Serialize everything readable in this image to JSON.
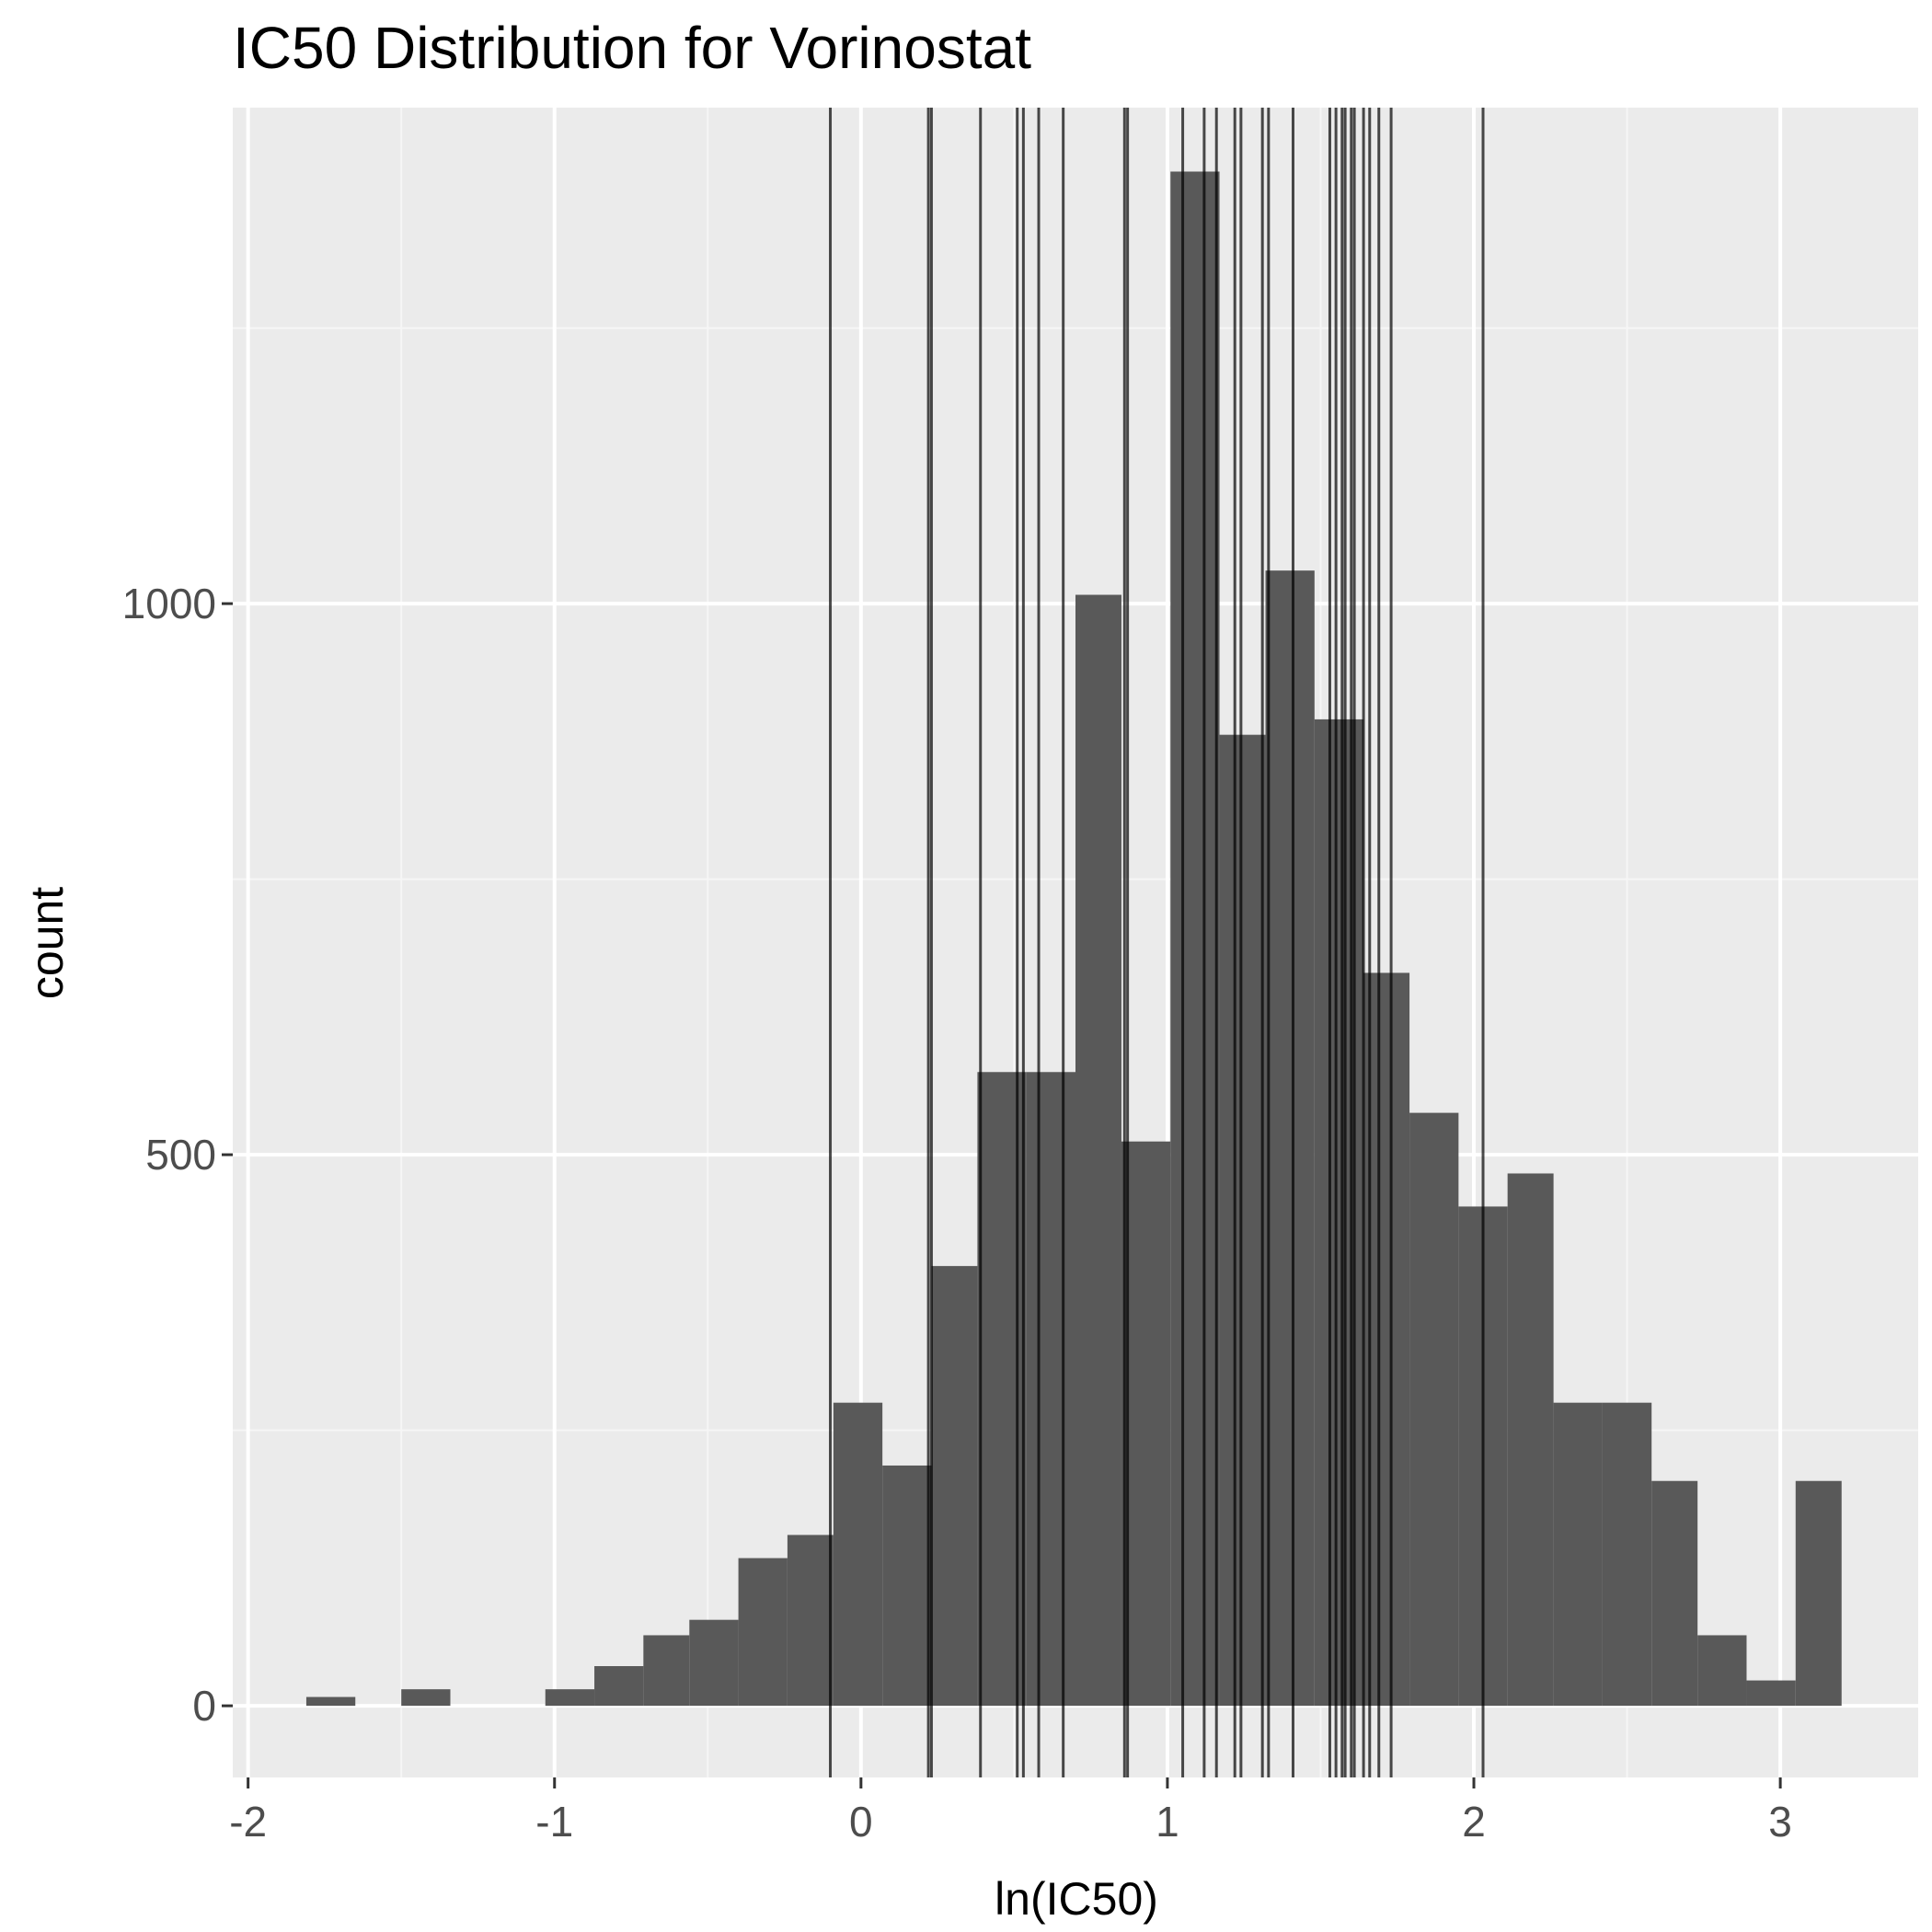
{
  "chart_data": {
    "type": "bar",
    "title": "IC50 Distribution for Vorinostat",
    "xlabel": "ln(IC50)",
    "ylabel": "count",
    "xlim": [
      -2.05,
      3.45
    ],
    "ylim": [
      -65,
      1450
    ],
    "x_ticks": [
      {
        "value": -2,
        "label": "-2"
      },
      {
        "value": -1,
        "label": "-1"
      },
      {
        "value": 0,
        "label": "0"
      },
      {
        "value": 1,
        "label": "1"
      },
      {
        "value": 2,
        "label": "2"
      },
      {
        "value": 3,
        "label": "3"
      }
    ],
    "y_ticks": [
      {
        "value": 0,
        "label": "0"
      },
      {
        "value": 500,
        "label": "500"
      },
      {
        "value": 1000,
        "label": "1000"
      }
    ],
    "bins": [
      {
        "x0": -1.81,
        "x1": -1.65,
        "count": 8
      },
      {
        "x0": -1.65,
        "x1": -1.5,
        "count": 0
      },
      {
        "x0": -1.5,
        "x1": -1.34,
        "count": 15
      },
      {
        "x0": -1.34,
        "x1": -1.18,
        "count": 0
      },
      {
        "x0": -1.18,
        "x1": -1.03,
        "count": 0
      },
      {
        "x0": -1.03,
        "x1": -0.87,
        "count": 15
      },
      {
        "x0": -0.87,
        "x1": -0.71,
        "count": 36
      },
      {
        "x0": -0.71,
        "x1": -0.56,
        "count": 64
      },
      {
        "x0": -0.56,
        "x1": -0.4,
        "count": 78
      },
      {
        "x0": -0.4,
        "x1": -0.24,
        "count": 134
      },
      {
        "x0": -0.24,
        "x1": -0.09,
        "count": 155
      },
      {
        "x0": -0.09,
        "x1": 0.07,
        "count": 275
      },
      {
        "x0": 0.07,
        "x1": 0.23,
        "count": 218
      },
      {
        "x0": 0.23,
        "x1": 0.38,
        "count": 399
      },
      {
        "x0": 0.38,
        "x1": 0.54,
        "count": 575
      },
      {
        "x0": 0.54,
        "x1": 0.7,
        "count": 575
      },
      {
        "x0": 0.7,
        "x1": 0.85,
        "count": 1008
      },
      {
        "x0": 0.85,
        "x1": 1.01,
        "count": 512
      },
      {
        "x0": 1.01,
        "x1": 1.17,
        "count": 1392
      },
      {
        "x0": 1.17,
        "x1": 1.32,
        "count": 881
      },
      {
        "x0": 1.32,
        "x1": 1.48,
        "count": 1030
      },
      {
        "x0": 1.48,
        "x1": 1.64,
        "count": 895
      },
      {
        "x0": 1.64,
        "x1": 1.79,
        "count": 665
      },
      {
        "x0": 1.79,
        "x1": 1.95,
        "count": 538
      },
      {
        "x0": 1.95,
        "x1": 2.11,
        "count": 453
      },
      {
        "x0": 2.11,
        "x1": 2.26,
        "count": 483
      },
      {
        "x0": 2.26,
        "x1": 2.42,
        "count": 275
      },
      {
        "x0": 2.42,
        "x1": 2.58,
        "count": 275
      },
      {
        "x0": 2.58,
        "x1": 2.73,
        "count": 204
      },
      {
        "x0": 2.73,
        "x1": 2.89,
        "count": 64
      },
      {
        "x0": 2.89,
        "x1": 3.05,
        "count": 23
      },
      {
        "x0": 3.05,
        "x1": 3.2,
        "count": 204
      }
    ],
    "vertical_lines": [
      -0.1,
      0.22,
      0.23,
      0.39,
      0.51,
      0.53,
      0.58,
      0.66,
      0.86,
      0.87,
      1.05,
      1.12,
      1.16,
      1.22,
      1.24,
      1.31,
      1.33,
      1.41,
      1.53,
      1.55,
      1.57,
      1.58,
      1.6,
      1.61,
      1.64,
      1.66,
      1.69,
      1.73,
      2.03
    ],
    "colors": {
      "panel_background": "#ebebeb",
      "grid_major": "#ffffff",
      "grid_minor": "#f6f6f6",
      "bar_fill": "#595959",
      "vline": "#000000"
    },
    "grid": true
  }
}
